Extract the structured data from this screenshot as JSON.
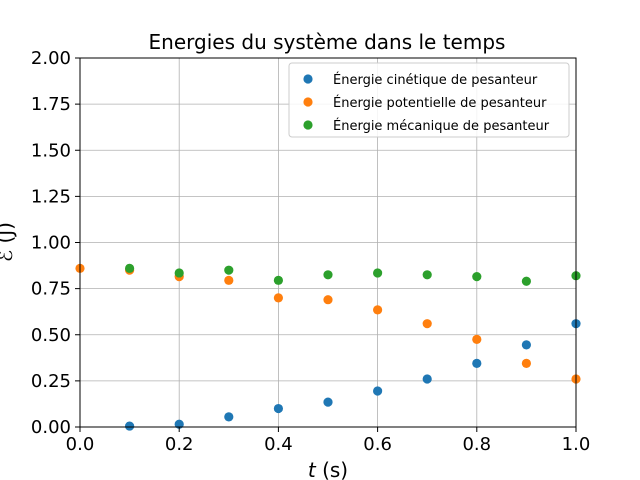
{
  "chart_data": {
    "type": "scatter",
    "title": "Energies du système dans le temps",
    "xlabel": "t (s)",
    "xlabel_var": "t",
    "xlabel_unit": " (s)",
    "ylabel": "ℰ (J)",
    "xlim": [
      0,
      1
    ],
    "ylim": [
      0,
      2
    ],
    "xticks": [
      "0.0",
      "0.2",
      "0.4",
      "0.6",
      "0.8",
      "1.0"
    ],
    "yticks": [
      "0.00",
      "0.25",
      "0.50",
      "0.75",
      "1.00",
      "1.25",
      "1.50",
      "1.75",
      "2.00"
    ],
    "grid": true,
    "legend_position": "top-right",
    "series": [
      {
        "name": "Énergie cinétique de pesanteur",
        "color": "#1f77b4",
        "x": [
          0.1,
          0.2,
          0.3,
          0.4,
          0.5,
          0.6,
          0.7,
          0.8,
          0.9,
          1.0
        ],
        "y": [
          0.005,
          0.015,
          0.055,
          0.1,
          0.135,
          0.195,
          0.26,
          0.345,
          0.445,
          0.56
        ]
      },
      {
        "name": "Énergie potentielle de pesanteur",
        "color": "#ff7f0e",
        "x": [
          0.0,
          0.1,
          0.2,
          0.3,
          0.4,
          0.5,
          0.6,
          0.7,
          0.8,
          0.9,
          1.0
        ],
        "y": [
          0.86,
          0.85,
          0.815,
          0.795,
          0.7,
          0.69,
          0.635,
          0.56,
          0.475,
          0.345,
          0.26
        ]
      },
      {
        "name": "Énergie mécanique de pesanteur",
        "color": "#2ca02c",
        "x": [
          0.1,
          0.2,
          0.3,
          0.4,
          0.5,
          0.6,
          0.7,
          0.8,
          0.9,
          1.0
        ],
        "y": [
          0.86,
          0.835,
          0.85,
          0.795,
          0.825,
          0.835,
          0.825,
          0.815,
          0.79,
          0.82
        ]
      }
    ]
  }
}
